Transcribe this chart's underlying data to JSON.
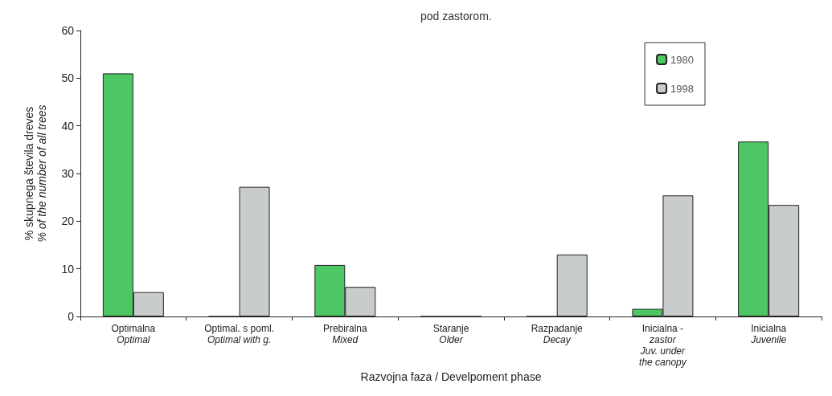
{
  "chart_data": {
    "type": "bar",
    "title": "pod zastorom.",
    "xlabel": "Razvojna faza / Develpoment phase",
    "ylabel": "% skupnega števila dreves\n% of the number of all trees",
    "categories": [
      "Optimalna\nOptimal",
      "Optimal. s poml.\nOptimal with g.",
      "Prebiralna\nMixed",
      "Staranje\nOlder",
      "Razpadanje\nDecay",
      "Inicialna -\nzastor\nJuv. under\nthe canopy",
      "Inicialna\nJuvenile"
    ],
    "series": [
      {
        "name": "1980",
        "color": "#4cc764",
        "values": [
          51,
          0,
          10.8,
          0,
          0,
          1.6,
          36.7
        ]
      },
      {
        "name": "1998",
        "color": "#c8cccd",
        "values": [
          5.1,
          27.2,
          6.2,
          0,
          13,
          25.4,
          23.4
        ]
      }
    ],
    "ylim": [
      0,
      60
    ],
    "yticks": [
      0,
      10,
      20,
      30,
      40,
      50,
      60
    ],
    "grid": false,
    "legend": "top right"
  }
}
